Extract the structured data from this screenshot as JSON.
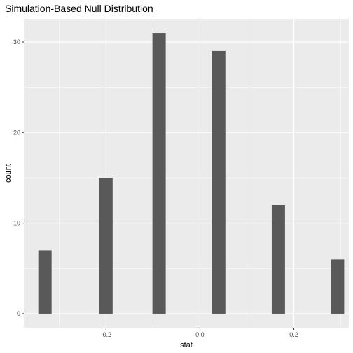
{
  "chart_data": {
    "type": "bar",
    "title": "Simulation-Based Null Distribution",
    "xlabel": "stat",
    "ylabel": "count",
    "bars": [
      {
        "x": -0.33,
        "count": 7
      },
      {
        "x": -0.2,
        "count": 15
      },
      {
        "x": -0.087,
        "count": 31
      },
      {
        "x": 0.04,
        "count": 29
      },
      {
        "x": 0.167,
        "count": 12
      },
      {
        "x": 0.293,
        "count": 6
      }
    ],
    "bar_width": 0.0283,
    "xlim": [
      -0.375,
      0.317
    ],
    "ylim": [
      -1.55,
      32.55
    ],
    "x_ticks": [
      {
        "value": -0.2,
        "label": "-0.2"
      },
      {
        "value": 0.0,
        "label": "0.0"
      },
      {
        "value": 0.2,
        "label": "0.2"
      }
    ],
    "y_ticks": [
      {
        "value": 0,
        "label": "0"
      },
      {
        "value": 10,
        "label": "10"
      },
      {
        "value": 20,
        "label": "20"
      },
      {
        "value": 30,
        "label": "30"
      }
    ],
    "colors": {
      "panel": "#ebebeb",
      "grid_major": "#ffffff",
      "bar": "#595959",
      "tick": "#333333"
    },
    "grid": true,
    "legend": "none"
  }
}
